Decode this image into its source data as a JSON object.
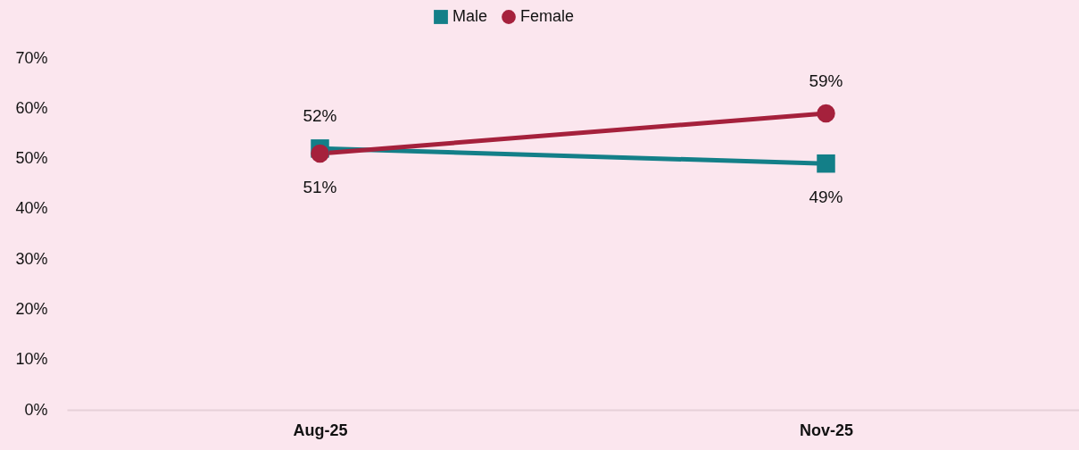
{
  "chart_data": {
    "type": "line",
    "categories": [
      "Aug-25",
      "Nov-25"
    ],
    "series": [
      {
        "name": "Male",
        "color": "#137f88",
        "marker": "square",
        "values": [
          52,
          49
        ],
        "value_labels": [
          "52%",
          "49%"
        ]
      },
      {
        "name": "Female",
        "color": "#a5213c",
        "marker": "circle",
        "values": [
          51,
          59
        ],
        "value_labels": [
          "51%",
          "59%"
        ]
      }
    ],
    "ylim": [
      0,
      70
    ],
    "yticks": [
      {
        "value": 0,
        "label": "0%"
      },
      {
        "value": 10,
        "label": "10%"
      },
      {
        "value": 20,
        "label": "20%"
      },
      {
        "value": 30,
        "label": "30%"
      },
      {
        "value": 40,
        "label": "40%"
      },
      {
        "value": 50,
        "label": "50%"
      },
      {
        "value": 60,
        "label": "60%"
      },
      {
        "value": 70,
        "label": "70%"
      }
    ],
    "grid": false,
    "legend": "top",
    "line_style": "solid"
  }
}
